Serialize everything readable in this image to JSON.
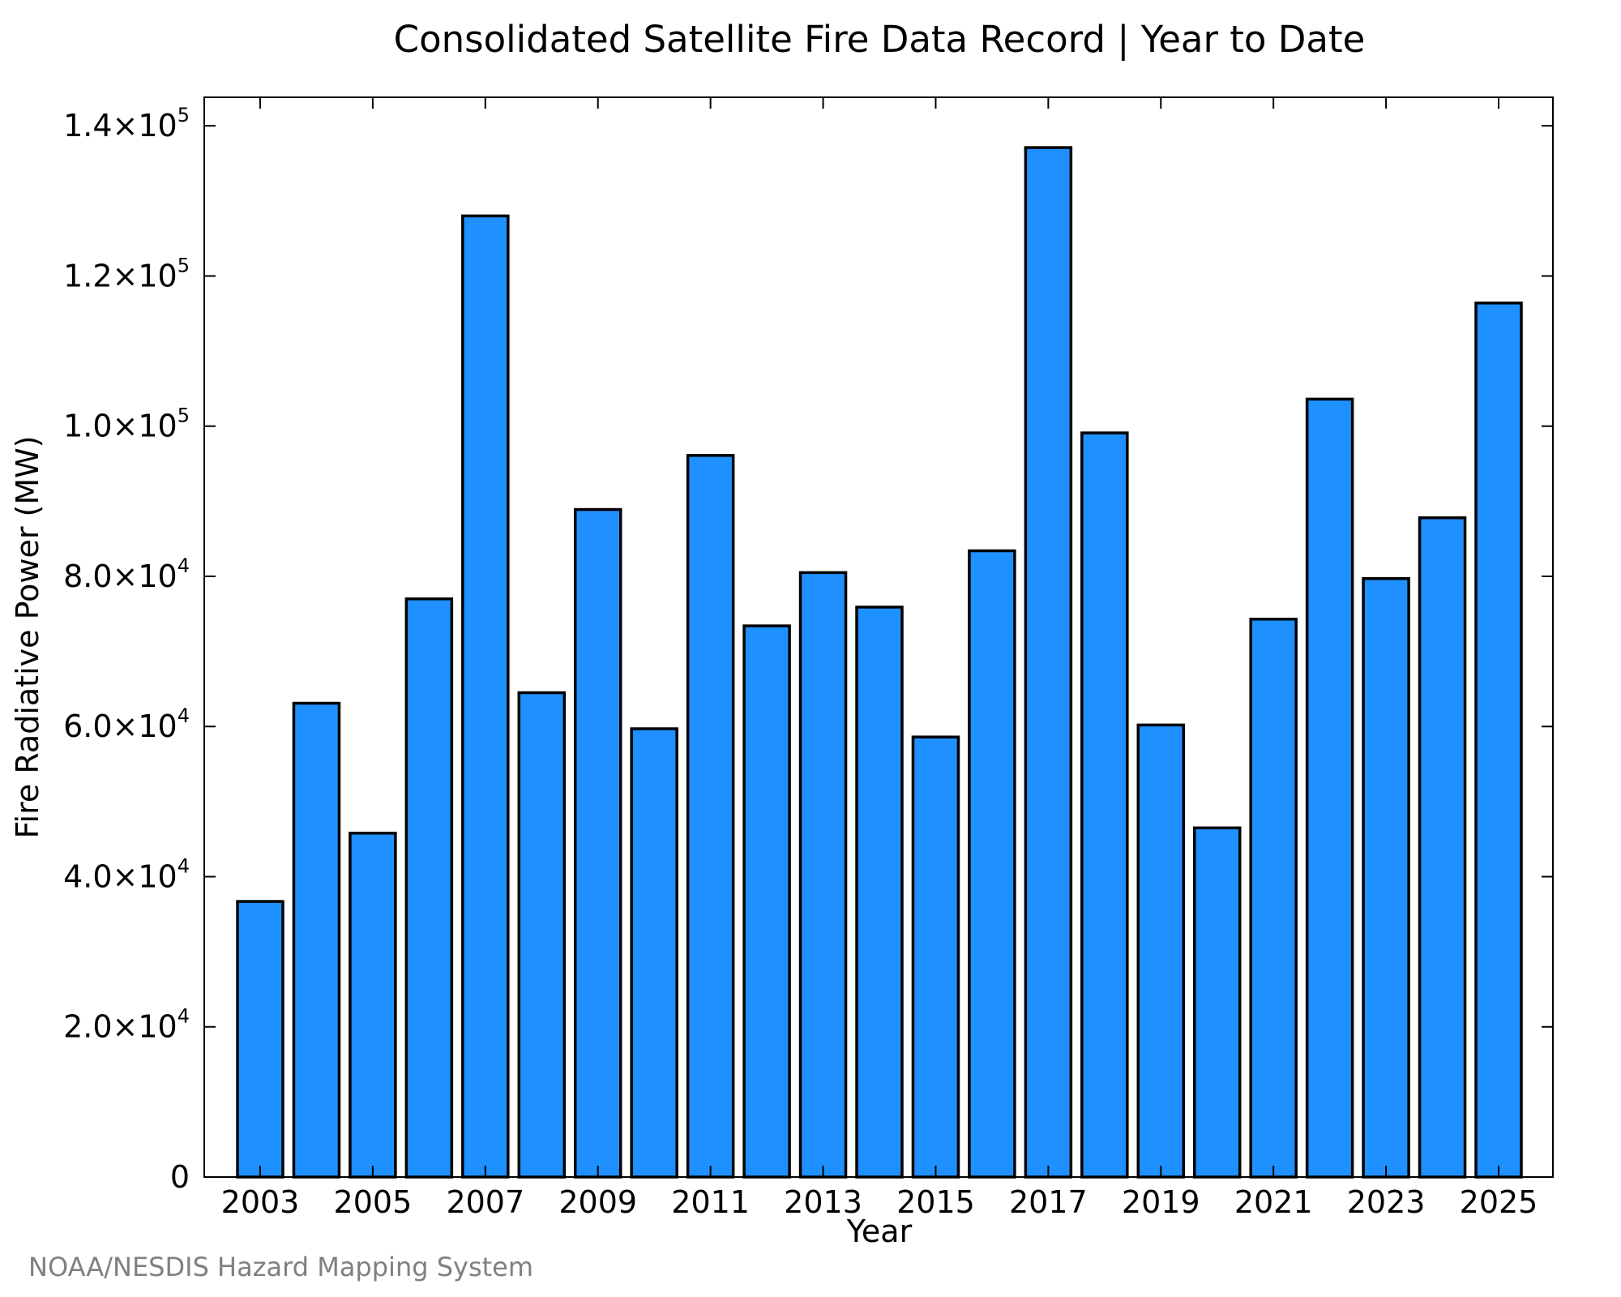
{
  "chart_data": {
    "type": "bar",
    "title": "Consolidated Satellite Fire Data Record | Year to Date",
    "xlabel": "Year",
    "ylabel": "Fire Radiative Power (MW)",
    "categories": [
      "2003",
      "2004",
      "2005",
      "2006",
      "2007",
      "2008",
      "2009",
      "2010",
      "2011",
      "2012",
      "2013",
      "2014",
      "2015",
      "2016",
      "2017",
      "2018",
      "2019",
      "2020",
      "2021",
      "2022",
      "2023",
      "2024",
      "2025"
    ],
    "values": [
      36700,
      63100,
      45800,
      77000,
      128000,
      64500,
      88900,
      59700,
      96100,
      73400,
      80500,
      75900,
      58600,
      83400,
      137100,
      99100,
      60200,
      46500,
      74300,
      103600,
      79700,
      87800,
      116400
    ],
    "ylim": [
      0,
      143800
    ],
    "xtick_labels": [
      "2003",
      "2005",
      "2007",
      "2009",
      "2011",
      "2013",
      "2015",
      "2017",
      "2019",
      "2021",
      "2023",
      "2025"
    ],
    "yticks": [
      {
        "value": 0,
        "mantissa": "0",
        "exponent": ""
      },
      {
        "value": 20000,
        "mantissa": "2.0×10",
        "exponent": "4"
      },
      {
        "value": 40000,
        "mantissa": "4.0×10",
        "exponent": "4"
      },
      {
        "value": 60000,
        "mantissa": "6.0×10",
        "exponent": "4"
      },
      {
        "value": 80000,
        "mantissa": "8.0×10",
        "exponent": "4"
      },
      {
        "value": 100000,
        "mantissa": "1.0×10",
        "exponent": "5"
      },
      {
        "value": 120000,
        "mantissa": "1.2×10",
        "exponent": "5"
      },
      {
        "value": 140000,
        "mantissa": "1.4×10",
        "exponent": "5"
      }
    ],
    "bar_color": "#1e90ff",
    "edge_color": "#000000",
    "grid": false,
    "legend": "none"
  },
  "credit": "NOAA/NESDIS Hazard Mapping System"
}
